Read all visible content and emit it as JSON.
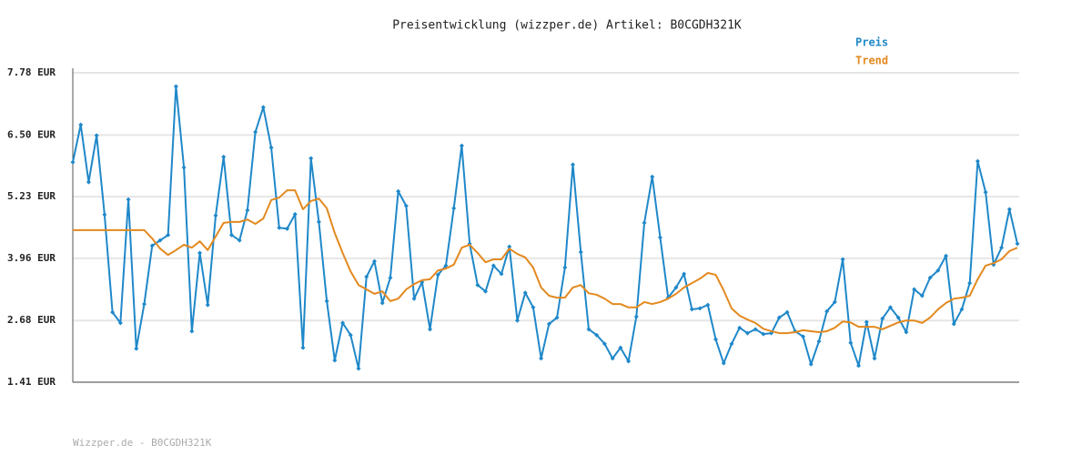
{
  "chart_data": {
    "type": "line",
    "title": "Preisentwicklung (wizzper.de) Artikel: B0CGDH321K",
    "footer": "Wizzper.de - B0CGDH321K",
    "legend": "top-right",
    "grid": true,
    "ylim": [
      1.41,
      7.78
    ],
    "yticks": [
      {
        "value": 1.41,
        "label": "1.41 EUR"
      },
      {
        "value": 2.68,
        "label": "2.68 EUR"
      },
      {
        "value": 3.96,
        "label": "3.96 EUR"
      },
      {
        "value": 5.23,
        "label": "5.23 EUR"
      },
      {
        "value": 6.5,
        "label": "6.50 EUR"
      },
      {
        "value": 7.78,
        "label": "7.78 EUR"
      }
    ],
    "series": [
      {
        "name": "Preis",
        "color": "#1f88c9",
        "markers": true,
        "values": [
          5.94,
          6.71,
          5.53,
          6.49,
          4.86,
          2.85,
          2.63,
          5.17,
          2.1,
          3.02,
          4.22,
          4.33,
          4.44,
          7.5,
          5.83,
          2.46,
          4.07,
          3.0,
          4.84,
          6.05,
          4.44,
          4.33,
          4.95,
          6.56,
          7.07,
          6.24,
          4.59,
          4.57,
          4.87,
          2.12,
          6.02,
          4.71,
          3.08,
          1.86,
          2.63,
          2.38,
          1.69,
          3.58,
          3.9,
          3.04,
          3.56,
          5.34,
          5.04,
          3.13,
          3.47,
          2.5,
          3.62,
          3.81,
          4.99,
          6.28,
          4.26,
          3.41,
          3.28,
          3.81,
          3.64,
          4.2,
          2.68,
          3.25,
          2.95,
          1.9,
          2.61,
          2.74,
          3.77,
          5.89,
          4.09,
          2.5,
          2.38,
          2.2,
          1.9,
          2.12,
          1.84,
          2.76,
          4.69,
          5.64,
          4.39,
          3.15,
          3.36,
          3.64,
          2.91,
          2.93,
          3.0,
          2.29,
          1.8,
          2.2,
          2.53,
          2.42,
          2.5,
          2.4,
          2.42,
          2.74,
          2.85,
          2.46,
          2.35,
          1.78,
          2.25,
          2.87,
          3.06,
          3.94,
          2.22,
          1.75,
          2.65,
          1.9,
          2.72,
          2.95,
          2.74,
          2.44,
          3.32,
          3.19,
          3.56,
          3.71,
          4.01,
          2.61,
          2.91,
          3.45,
          5.96,
          5.32,
          3.83,
          4.18,
          4.97,
          4.26
        ]
      },
      {
        "name": "Trend",
        "color": "#e3891f",
        "markers": false,
        "values": [
          4.54,
          4.54,
          4.54,
          4.54,
          4.54,
          4.54,
          4.54,
          4.54,
          4.54,
          4.54,
          4.37,
          4.16,
          4.03,
          4.13,
          4.24,
          4.18,
          4.31,
          4.13,
          4.41,
          4.69,
          4.71,
          4.71,
          4.76,
          4.67,
          4.78,
          5.16,
          5.21,
          5.36,
          5.36,
          4.97,
          5.14,
          5.19,
          4.99,
          4.48,
          4.07,
          3.69,
          3.41,
          3.32,
          3.23,
          3.28,
          3.08,
          3.13,
          3.32,
          3.43,
          3.51,
          3.53,
          3.71,
          3.75,
          3.83,
          4.18,
          4.24,
          4.07,
          3.88,
          3.94,
          3.94,
          4.16,
          4.05,
          3.98,
          3.77,
          3.36,
          3.19,
          3.15,
          3.15,
          3.36,
          3.41,
          3.24,
          3.21,
          3.13,
          3.02,
          3.02,
          2.95,
          2.95,
          3.06,
          3.02,
          3.06,
          3.13,
          3.23,
          3.36,
          3.45,
          3.54,
          3.66,
          3.62,
          3.3,
          2.93,
          2.78,
          2.7,
          2.63,
          2.51,
          2.46,
          2.42,
          2.42,
          2.44,
          2.48,
          2.46,
          2.44,
          2.46,
          2.53,
          2.66,
          2.64,
          2.55,
          2.55,
          2.55,
          2.5,
          2.57,
          2.64,
          2.68,
          2.68,
          2.63,
          2.74,
          2.91,
          3.04,
          3.13,
          3.15,
          3.19,
          3.53,
          3.81,
          3.86,
          3.94,
          4.11,
          4.18
        ]
      }
    ]
  }
}
